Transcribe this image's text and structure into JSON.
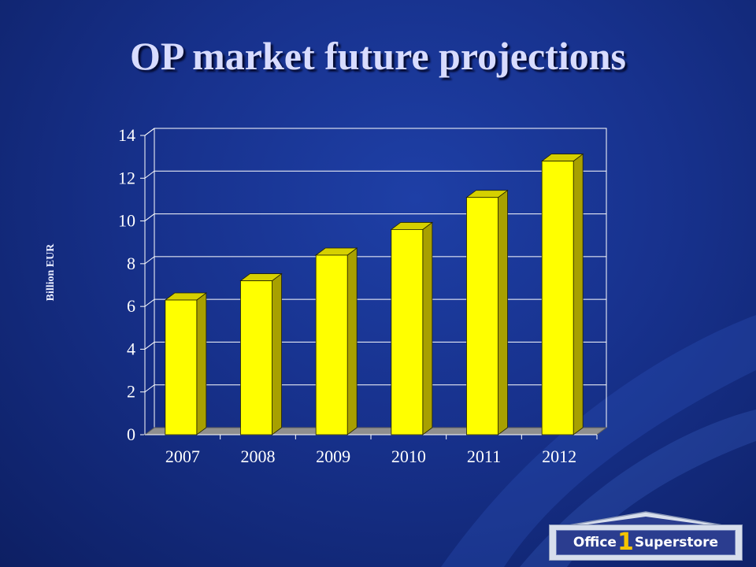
{
  "slide": {
    "title": "OP market future projections",
    "logo": {
      "part1": "Office",
      "part2": "1",
      "part3": "Superstore"
    }
  },
  "colors": {
    "bar_front": "#ffff00",
    "bar_side": "#a8a000",
    "bar_top": "#d6d000",
    "floor": "#8f8f8f"
  },
  "chart_data": {
    "type": "bar",
    "categories": [
      "2007",
      "2008",
      "2009",
      "2010",
      "2011",
      "2012"
    ],
    "values": [
      6.3,
      7.2,
      8.4,
      9.6,
      11.1,
      12.8
    ],
    "yticks": [
      "0",
      "2",
      "4",
      "6",
      "8",
      "10",
      "12",
      "14"
    ],
    "ylabel": "Billion EUR",
    "ylim": [
      0,
      14
    ],
    "grid": true,
    "style": "3d"
  }
}
